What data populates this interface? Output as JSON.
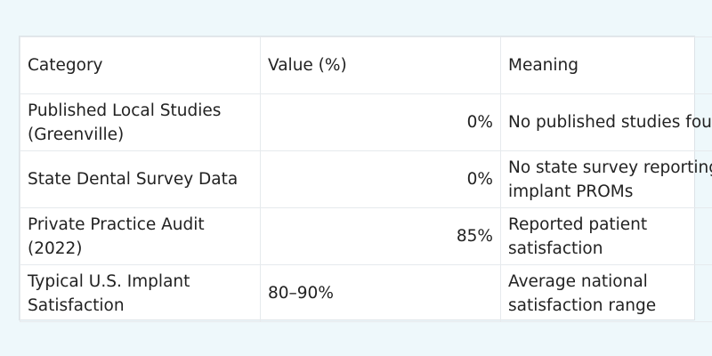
{
  "table": {
    "headers": [
      "Category",
      "Value (%)",
      "Meaning"
    ],
    "rows": [
      {
        "category": "Published Local Studies (Greenville)",
        "value": "0%",
        "meaning": "No published studies found"
      },
      {
        "category": "State Dental Survey Data",
        "value": "0%",
        "meaning": "No state survey reporting implant PROMs"
      },
      {
        "category": "Private Practice Audit (2022)",
        "value": "85%",
        "meaning": "Reported patient satisfaction"
      },
      {
        "category": "Typical U.S. Implant Satisfaction",
        "value": "80–90%",
        "meaning": "Average national satisfaction range"
      }
    ]
  },
  "colors": {
    "page_background": "#eef8fb",
    "table_background": "#ffffff",
    "border": "#e6eaed",
    "text": "#222222"
  }
}
